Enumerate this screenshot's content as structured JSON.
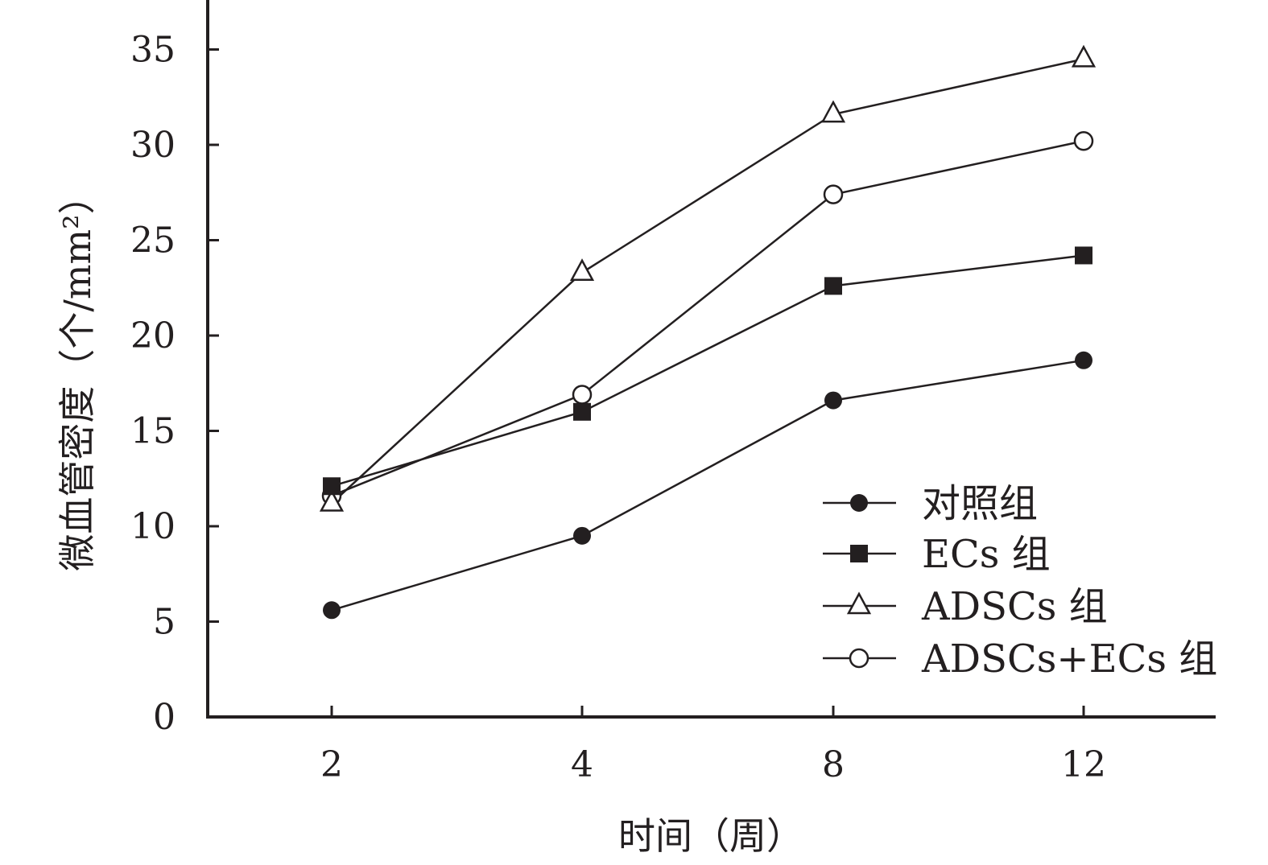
{
  "chart_data": {
    "type": "line",
    "title": "",
    "xlabel": "时间（周）",
    "ylabel": "微血管密度（个/mm²）",
    "categories": [
      "2",
      "4",
      "8",
      "12"
    ],
    "ylim": [
      0,
      37
    ],
    "yticks": [
      0,
      5,
      10,
      15,
      20,
      25,
      30,
      35
    ],
    "grid": false,
    "legend_position": "bottom-right",
    "series": [
      {
        "name": "对照组",
        "marker": "filled-circle",
        "values": [
          5.6,
          9.5,
          16.6,
          18.7
        ]
      },
      {
        "name": "ECs 组",
        "marker": "filled-square",
        "values": [
          12.1,
          16.0,
          22.6,
          24.2
        ]
      },
      {
        "name": "ADSCs 组",
        "marker": "open-triangle",
        "values": [
          11.2,
          23.3,
          31.6,
          34.5
        ]
      },
      {
        "name": "ADSCs+ECs 组",
        "marker": "open-circle",
        "values": [
          11.6,
          16.9,
          27.4,
          30.2
        ]
      }
    ],
    "colors": {
      "line": "#231f20",
      "background": "#ffffff"
    }
  }
}
